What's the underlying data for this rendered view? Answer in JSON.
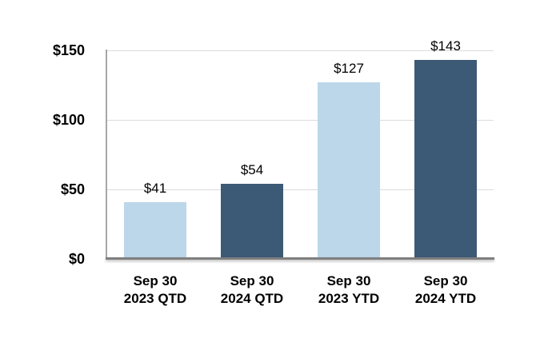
{
  "chart_data": {
    "type": "bar",
    "title": "",
    "xlabel": "",
    "ylabel": "",
    "categories": [
      {
        "line1": "Sep 30",
        "line2": "2023 QTD"
      },
      {
        "line1": "Sep 30",
        "line2": "2024 QTD"
      },
      {
        "line1": "Sep 30",
        "line2": "2023 YTD"
      },
      {
        "line1": "Sep 30",
        "line2": "2024 YTD"
      }
    ],
    "values": [
      41,
      54,
      127,
      143
    ],
    "value_labels": [
      "$41",
      "$54",
      "$127",
      "$143"
    ],
    "bar_colors": [
      "#BCD6EA",
      "#3C5A76",
      "#BCD6EA",
      "#3C5A76"
    ],
    "yticks": [
      {
        "label": "$0",
        "value": 0
      },
      {
        "label": "$50",
        "value": 50
      },
      {
        "label": "$100",
        "value": 100
      },
      {
        "label": "$150",
        "value": 150
      }
    ],
    "ylim": [
      0,
      150
    ],
    "grid": true,
    "legend": false
  },
  "colors": {
    "bar_light": "#BCD6EA",
    "bar_dark": "#3C5A76",
    "gridline": "#DCDCDC",
    "y_axis_line": "#A6A6A6",
    "x_axis_line": "#7F7F7F",
    "text": "#000000",
    "background": "#FFFFFF"
  }
}
